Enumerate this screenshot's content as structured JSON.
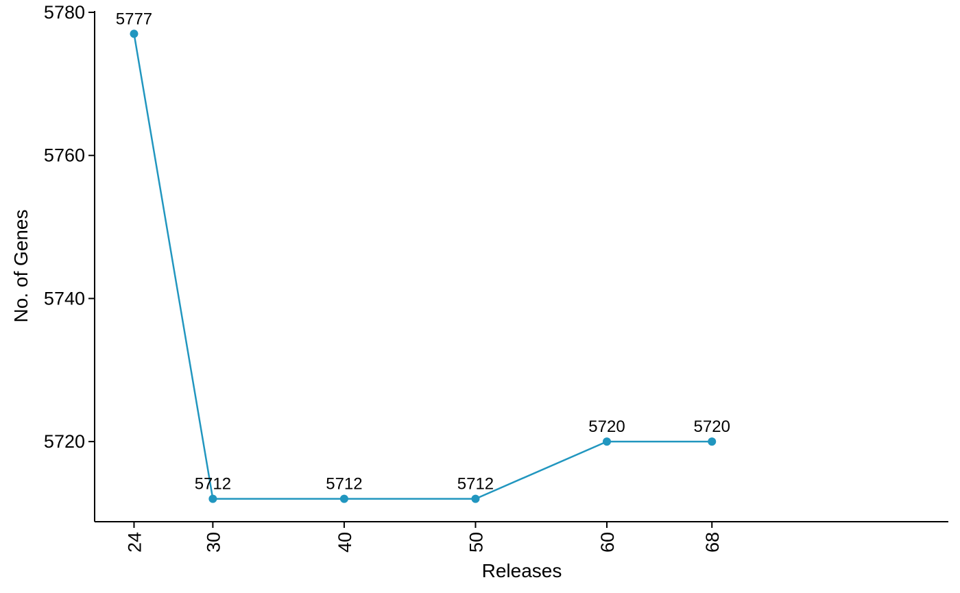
{
  "chart_data": {
    "type": "line",
    "x": [
      24,
      30,
      40,
      50,
      60,
      68
    ],
    "x_tick_labels": [
      "24",
      "30",
      "40",
      "50",
      "60",
      "68"
    ],
    "xlim": [
      21,
      86
    ],
    "xlabel": "Releases",
    "ylabel": "No. of Genes",
    "y_ticks": [
      5720,
      5740,
      5760,
      5780
    ],
    "y_tick_labels": [
      "5720",
      "5740",
      "5760",
      "5780"
    ],
    "ylim": [
      5708.8,
      5780
    ],
    "series": [
      {
        "values": [
          5777,
          5712,
          5712,
          5712,
          5720,
          5720
        ],
        "data_labels": [
          "5777",
          "5712",
          "5712",
          "5712",
          "5720",
          "5720"
        ],
        "color": "#2196BF"
      }
    ],
    "grid": false,
    "legend": "none"
  }
}
